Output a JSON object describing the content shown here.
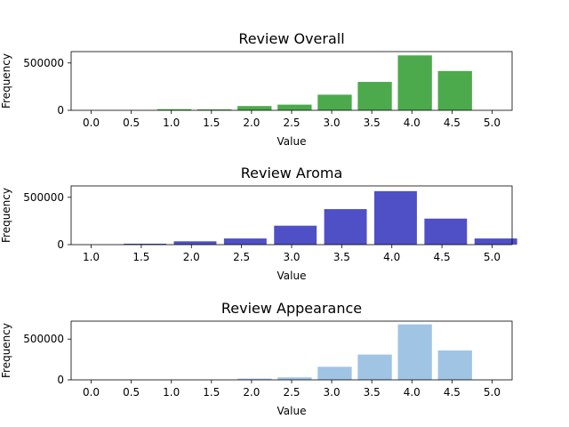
{
  "chart_data": [
    {
      "type": "bar",
      "title": "Review Overall",
      "xlabel": "Value",
      "ylabel": "Frequency",
      "xlim": [
        -0.25,
        5.25
      ],
      "ylim": [
        0,
        620000
      ],
      "xticks": [
        "0.0",
        "0.5",
        "1.0",
        "1.5",
        "2.0",
        "2.5",
        "3.0",
        "3.5",
        "4.0",
        "4.5",
        "5.0"
      ],
      "yticks": [
        "0",
        "500000"
      ],
      "bar_width": 0.425,
      "color": "#4caa4c",
      "x": [
        0.0,
        0.5,
        1.0,
        1.5,
        2.0,
        2.5,
        3.0,
        3.5,
        4.0,
        4.5,
        5.0
      ],
      "values": [
        0,
        0,
        12000,
        10000,
        45000,
        60000,
        165000,
        300000,
        580000,
        415000,
        0
      ]
    },
    {
      "type": "bar",
      "title": "Review Aroma",
      "xlabel": "Value",
      "ylabel": "Frequency",
      "xlim": [
        0.8,
        5.2
      ],
      "ylim": [
        0,
        620000
      ],
      "xticks": [
        "1.0",
        "1.5",
        "2.0",
        "2.5",
        "3.0",
        "3.5",
        "4.0",
        "4.5",
        "5.0"
      ],
      "yticks": [
        "0",
        "500000"
      ],
      "bar_width": 0.425,
      "color": "#4f4fc6",
      "x": [
        1.0,
        1.5,
        2.0,
        2.5,
        3.0,
        3.5,
        4.0,
        4.5,
        5.0
      ],
      "values": [
        0,
        10000,
        35000,
        65000,
        200000,
        375000,
        565000,
        275000,
        65000
      ]
    },
    {
      "type": "bar",
      "title": "Review Appearance",
      "xlabel": "Value",
      "ylabel": "Frequency",
      "xlim": [
        -0.25,
        5.25
      ],
      "ylim": [
        0,
        720000
      ],
      "xticks": [
        "0.0",
        "0.5",
        "1.0",
        "1.5",
        "2.0",
        "2.5",
        "3.0",
        "3.5",
        "4.0",
        "4.5",
        "5.0"
      ],
      "yticks": [
        "0",
        "500000"
      ],
      "bar_width": 0.425,
      "color": "#a0c4e4",
      "x": [
        0.0,
        0.5,
        1.0,
        1.5,
        2.0,
        2.5,
        3.0,
        3.5,
        4.0,
        4.5,
        5.0
      ],
      "values": [
        0,
        0,
        0,
        0,
        15000,
        30000,
        160000,
        310000,
        680000,
        360000,
        0
      ]
    }
  ]
}
